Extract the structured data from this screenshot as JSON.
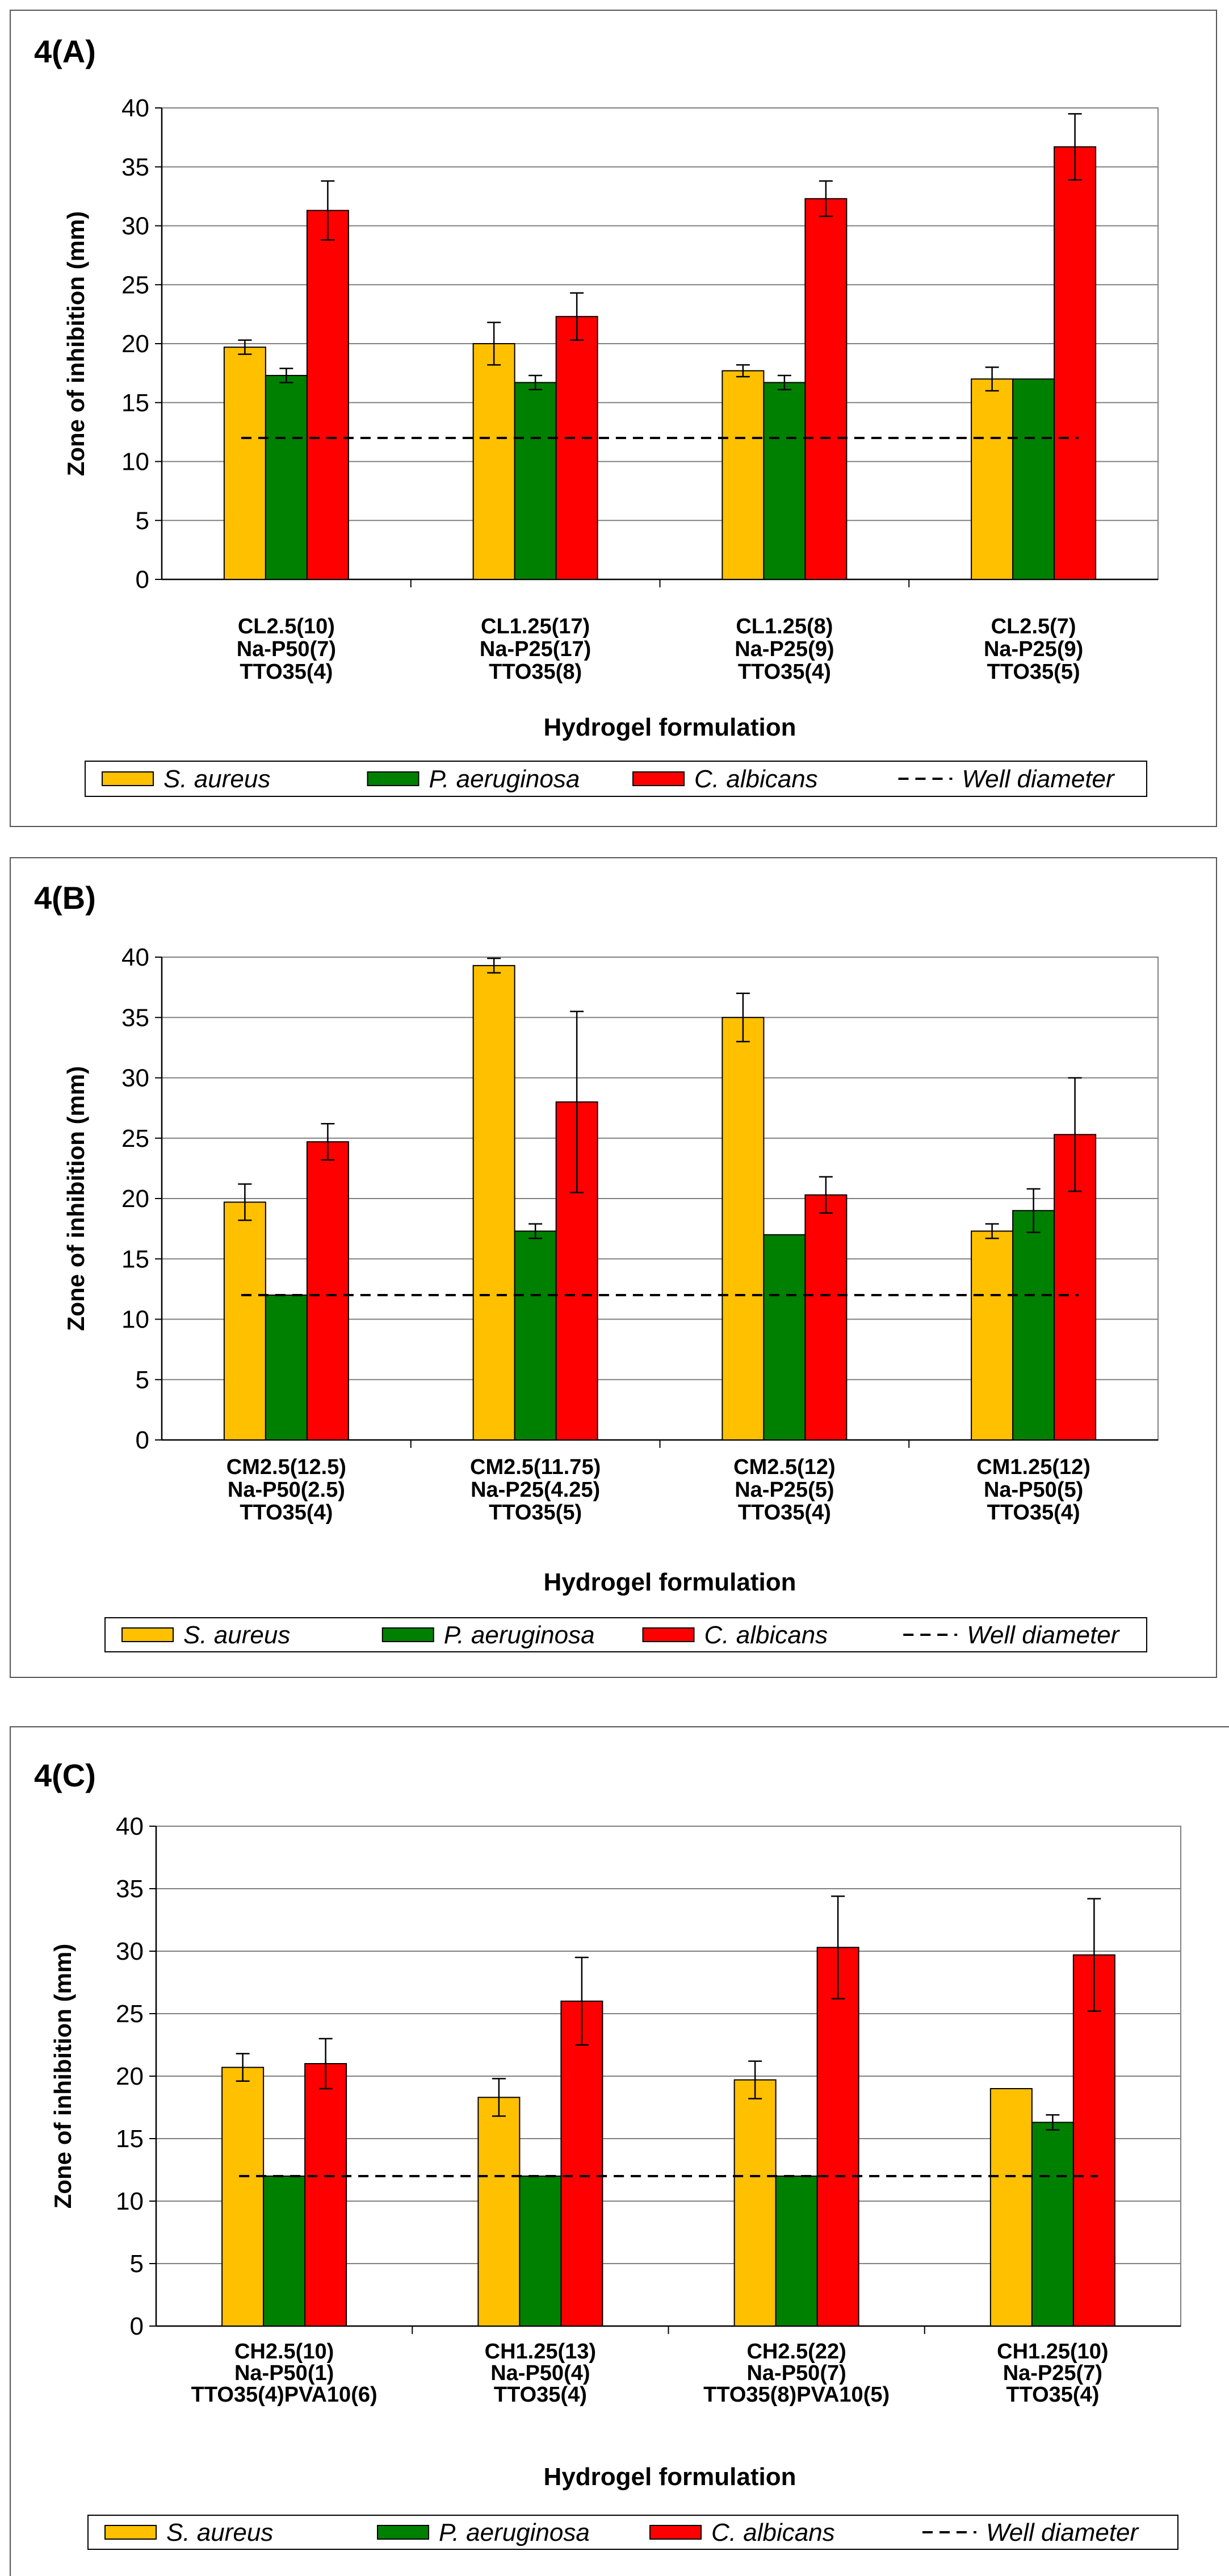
{
  "chart_data": [
    {
      "type": "bar",
      "title": "4(A)",
      "xlabel": "Hydrogel formulation",
      "ylabel": "Zone of inhibition (mm)",
      "ylim": [
        0,
        40
      ],
      "yticks": [
        "0",
        "5",
        "10",
        "15",
        "20",
        "25",
        "30",
        "35",
        "40"
      ],
      "categories": [
        [
          "CL2.5(10)",
          "Na-P50(7)",
          "TTO35(4)"
        ],
        [
          "CL1.25(17)",
          "Na-P25(17)",
          "TTO35(8)"
        ],
        [
          "CL1.25(8)",
          "Na-P25(9)",
          "TTO35(4)"
        ],
        [
          "CL2.5(7)",
          "Na-P25(9)",
          "TTO35(5)"
        ]
      ],
      "series": [
        {
          "name": "S. aureus",
          "color": "#ffc000",
          "values": [
            19.7,
            20.0,
            17.7,
            17.0
          ],
          "errors": [
            0.6,
            1.8,
            0.5,
            1.0
          ]
        },
        {
          "name": "P. aeruginosa",
          "color": "#008000",
          "values": [
            17.3,
            16.7,
            16.7,
            17.0
          ],
          "errors": [
            0.6,
            0.6,
            0.6,
            0
          ]
        },
        {
          "name": "C. albicans",
          "color": "#ff0000",
          "values": [
            31.3,
            22.3,
            32.3,
            36.7
          ],
          "errors": [
            2.5,
            2.0,
            1.5,
            2.8
          ]
        }
      ],
      "well_diameter": {
        "name": "Well diameter",
        "value": 12
      }
    },
    {
      "type": "bar",
      "title": "4(B)",
      "xlabel": "Hydrogel formulation",
      "ylabel": "Zone of inhibition (mm)",
      "ylim": [
        0,
        40
      ],
      "yticks": [
        "0",
        "5",
        "10",
        "15",
        "20",
        "25",
        "30",
        "35",
        "40"
      ],
      "categories": [
        [
          "CM2.5(12.5)",
          "Na-P50(2.5)",
          "TTO35(4)"
        ],
        [
          "CM2.5(11.75)",
          "Na-P25(4.25)",
          "TTO35(5)"
        ],
        [
          "CM2.5(12)",
          "Na-P25(5)",
          "TTO35(4)"
        ],
        [
          "CM1.25(12)",
          "Na-P50(5)",
          "TTO35(4)"
        ]
      ],
      "series": [
        {
          "name": "S. aureus",
          "color": "#ffc000",
          "values": [
            19.7,
            39.3,
            35.0,
            17.3
          ],
          "errors": [
            1.5,
            0.6,
            2.0,
            0.6
          ]
        },
        {
          "name": "P. aeruginosa",
          "color": "#008000",
          "values": [
            12.0,
            17.3,
            17.0,
            19.0
          ],
          "errors": [
            0,
            0.6,
            0,
            1.8
          ]
        },
        {
          "name": "C. albicans",
          "color": "#ff0000",
          "values": [
            24.7,
            28.0,
            20.3,
            25.3
          ],
          "errors": [
            1.5,
            7.5,
            1.5,
            4.7
          ]
        }
      ],
      "well_diameter": {
        "name": "Well diameter",
        "value": 12
      }
    },
    {
      "type": "bar",
      "title": "4(C)",
      "xlabel": "Hydrogel formulation",
      "ylabel": "Zone of inhibition (mm)",
      "ylim": [
        0,
        40
      ],
      "yticks": [
        "0",
        "5",
        "10",
        "15",
        "20",
        "25",
        "30",
        "35",
        "40"
      ],
      "categories": [
        [
          "CH2.5(10)",
          "Na-P50(1)",
          "TTO35(4)PVA10(6)"
        ],
        [
          "CH1.25(13)",
          "Na-P50(4)",
          "TTO35(4)"
        ],
        [
          "CH2.5(22)",
          "Na-P50(7)",
          "TTO35(8)PVA10(5)"
        ],
        [
          "CH1.25(10)",
          "Na-P25(7)",
          "TTO35(4)"
        ]
      ],
      "series": [
        {
          "name": "S. aureus",
          "color": "#ffc000",
          "values": [
            20.7,
            18.3,
            19.7,
            19.0
          ],
          "errors": [
            1.1,
            1.5,
            1.5,
            0
          ]
        },
        {
          "name": "P. aeruginosa",
          "color": "#008000",
          "values": [
            12.0,
            12.0,
            12.0,
            16.3
          ],
          "errors": [
            0,
            0,
            0,
            0.6
          ]
        },
        {
          "name": "C. albicans",
          "color": "#ff0000",
          "values": [
            21.0,
            26.0,
            30.3,
            29.7
          ],
          "errors": [
            2.0,
            3.5,
            4.1,
            4.5
          ]
        }
      ],
      "well_diameter": {
        "name": "Well diameter",
        "value": 12
      }
    }
  ]
}
